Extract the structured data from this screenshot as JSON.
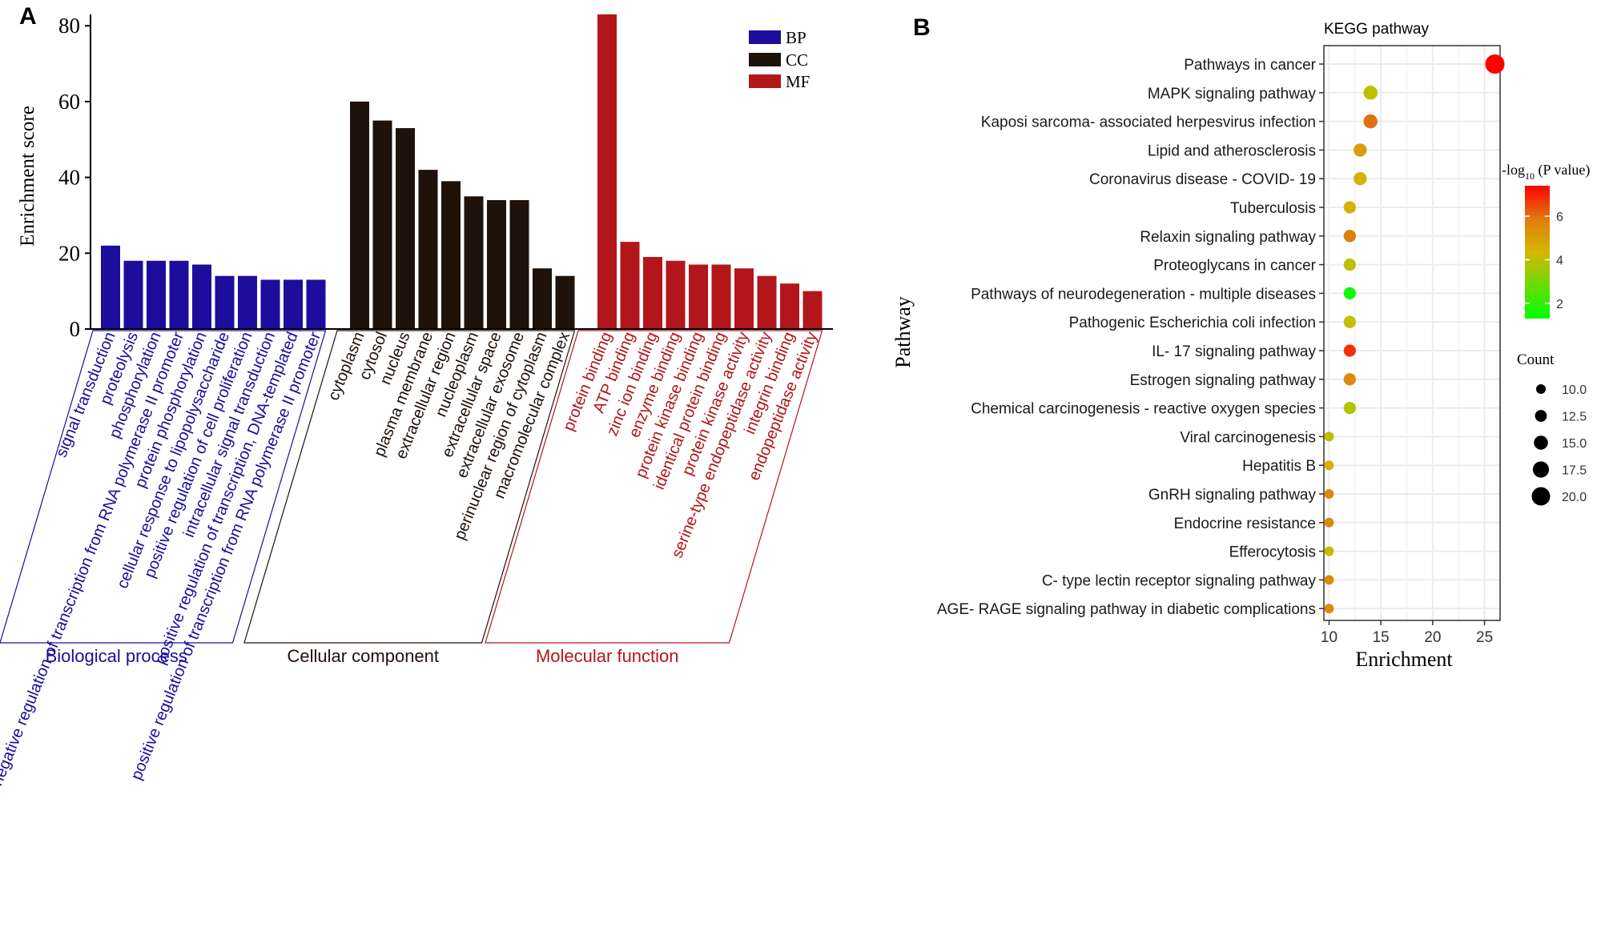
{
  "panels": [
    {
      "label": "A"
    },
    {
      "label": "B"
    }
  ],
  "chart_data": [
    {
      "type": "bar",
      "ylabel": "Enrichment score",
      "ylim": [
        0,
        83
      ],
      "yticks": [
        0,
        20,
        40,
        60,
        80
      ],
      "legend": {
        "placement": "top-right",
        "entries": [
          "BP",
          "CC",
          "MF"
        ]
      },
      "colors": {
        "BP": "#1c0d9c",
        "CC": "#1e120b",
        "MF": "#b2161b"
      },
      "groups": [
        {
          "name": "Biological process",
          "legend": "BP",
          "color": "#1c0d9c",
          "categories": [
            "signal transduction",
            "proteolysis",
            "phosphorylation",
            "negative regulation of transcription from RNA polymerase II promoter",
            "protein phosphorylation",
            "cellular response to lipopolysaccharide",
            "positive regulation of cell proliferation",
            "intracellular signal transduction",
            "positive regulation of transcription, DNA-templated",
            "positive regulation of transcription from RNA polymerase II promoter"
          ],
          "values": [
            22,
            18,
            18,
            18,
            17,
            14,
            14,
            13,
            13,
            13
          ]
        },
        {
          "name": "Cellular component",
          "legend": "CC",
          "color": "#1e120b",
          "categories": [
            "cytoplasm",
            "cytosol",
            "nucleus",
            "plasma membrane",
            "extracellular region",
            "nucleoplasm",
            "extracellular space",
            "extracellular exosome",
            "perinuclear region of cytoplasm",
            "macromolecular complex"
          ],
          "values": [
            60,
            55,
            53,
            42,
            39,
            35,
            34,
            34,
            16,
            14
          ]
        },
        {
          "name": "Molecular function",
          "legend": "MF",
          "color": "#b2161b",
          "categories": [
            "protein binding",
            "ATP binding",
            "zinc ion binding",
            "enzyme binding",
            "protein kinase binding",
            "identical protein binding",
            "protein kinase activity",
            "serine-type endopeptidase activity",
            "integrin binding",
            "endopeptidase activity"
          ],
          "values": [
            83,
            23,
            19,
            18,
            17,
            17,
            16,
            14,
            12,
            10
          ]
        }
      ]
    },
    {
      "type": "scatter",
      "title": "KEGG pathway",
      "xlabel": "Enrichment",
      "ylabel": "Pathway",
      "xlim": [
        9.5,
        26.5
      ],
      "xticks": [
        10,
        15,
        20,
        25
      ],
      "grid": true,
      "color_legend": {
        "title_prefix": "-log",
        "title_sub": "10",
        "title_suffix": " (P value)",
        "ticks": [
          2,
          4,
          6
        ],
        "range": [
          1.3,
          7.4
        ],
        "low_color": "#00ff00",
        "high_color": "#ff0000"
      },
      "size_legend": {
        "title": "Count",
        "values": [
          "10.0",
          "12.5",
          "15.0",
          "17.5",
          "20.0"
        ]
      },
      "points": [
        {
          "pathway": "Pathways in cancer",
          "enrichment": 26.0,
          "count": 21,
          "neg_log10_p": 7.4
        },
        {
          "pathway": "MAPK signaling pathway",
          "enrichment": 14.0,
          "count": 15,
          "neg_log10_p": 4.0
        },
        {
          "pathway": "Kaposi sarcoma- associated herpesvirus infection",
          "enrichment": 14.0,
          "count": 15,
          "neg_log10_p": 6.0
        },
        {
          "pathway": "Lipid and atherosclerosis",
          "enrichment": 13.0,
          "count": 14,
          "neg_log10_p": 5.0
        },
        {
          "pathway": "Coronavirus disease -  COVID- 19",
          "enrichment": 13.0,
          "count": 14,
          "neg_log10_p": 4.5
        },
        {
          "pathway": "Tuberculosis",
          "enrichment": 12.0,
          "count": 13,
          "neg_log10_p": 4.5
        },
        {
          "pathway": "Relaxin signaling pathway",
          "enrichment": 12.0,
          "count": 13,
          "neg_log10_p": 5.8
        },
        {
          "pathway": "Proteoglycans in cancer",
          "enrichment": 12.0,
          "count": 13,
          "neg_log10_p": 4.0
        },
        {
          "pathway": "Pathways of neurodegeneration -  multiple diseases",
          "enrichment": 12.0,
          "count": 13,
          "neg_log10_p": 1.5
        },
        {
          "pathway": "Pathogenic Escherichia coli infection",
          "enrichment": 12.0,
          "count": 13,
          "neg_log10_p": 4.0
        },
        {
          "pathway": "IL- 17 signaling pathway",
          "enrichment": 12.0,
          "count": 13,
          "neg_log10_p": 6.8
        },
        {
          "pathway": "Estrogen signaling pathway",
          "enrichment": 12.0,
          "count": 13,
          "neg_log10_p": 5.5
        },
        {
          "pathway": "Chemical carcinogenesis -  reactive oxygen species",
          "enrichment": 12.0,
          "count": 13,
          "neg_log10_p": 3.8
        },
        {
          "pathway": "Viral carcinogenesis",
          "enrichment": 10.0,
          "count": 10,
          "neg_log10_p": 4.0
        },
        {
          "pathway": "Hepatitis B",
          "enrichment": 10.0,
          "count": 10,
          "neg_log10_p": 4.5
        },
        {
          "pathway": "GnRH signaling pathway",
          "enrichment": 10.0,
          "count": 10,
          "neg_log10_p": 5.5
        },
        {
          "pathway": "Endocrine resistance",
          "enrichment": 10.0,
          "count": 10,
          "neg_log10_p": 5.5
        },
        {
          "pathway": "Efferocytosis",
          "enrichment": 10.0,
          "count": 10,
          "neg_log10_p": 4.2
        },
        {
          "pathway": "C- type lectin receptor signaling pathway",
          "enrichment": 10.0,
          "count": 10,
          "neg_log10_p": 5.5
        },
        {
          "pathway": "AGE- RAGE signaling pathway in diabetic complications",
          "enrichment": 10.0,
          "count": 10,
          "neg_log10_p": 5.5
        }
      ]
    }
  ]
}
